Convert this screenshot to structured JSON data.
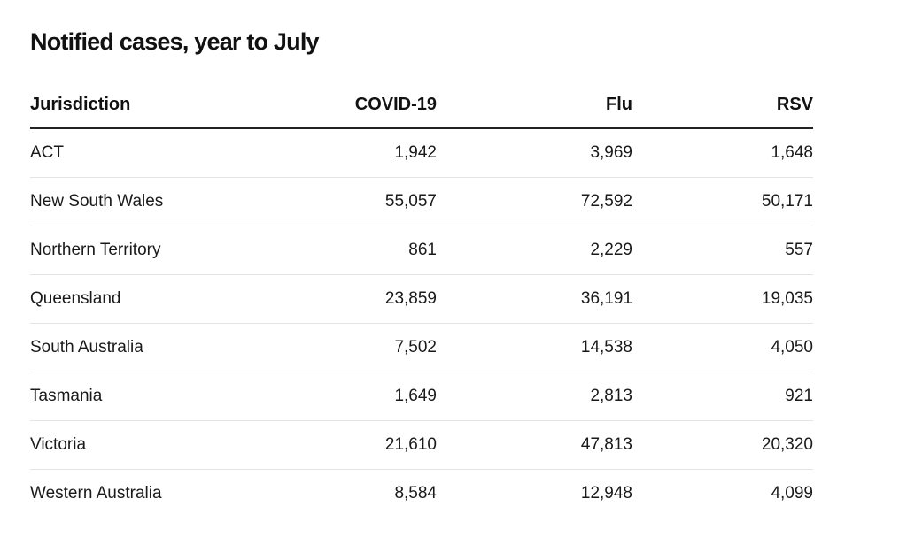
{
  "chart_data": {
    "type": "table",
    "title": "Notified cases, year to July",
    "columns": [
      "Jurisdiction",
      "COVID-19",
      "Flu",
      "RSV"
    ],
    "rows": [
      [
        "ACT",
        "1,942",
        "3,969",
        "1,648"
      ],
      [
        "New South Wales",
        "55,057",
        "72,592",
        "50,171"
      ],
      [
        "Northern Territory",
        "861",
        "2,229",
        "557"
      ],
      [
        "Queensland",
        "23,859",
        "36,191",
        "19,035"
      ],
      [
        "South Australia",
        "7,502",
        "14,538",
        "4,050"
      ],
      [
        "Tasmania",
        "1,649",
        "2,813",
        "921"
      ],
      [
        "Victoria",
        "21,610",
        "47,813",
        "20,320"
      ],
      [
        "Western Australia",
        "8,584",
        "12,948",
        "4,099"
      ]
    ]
  }
}
